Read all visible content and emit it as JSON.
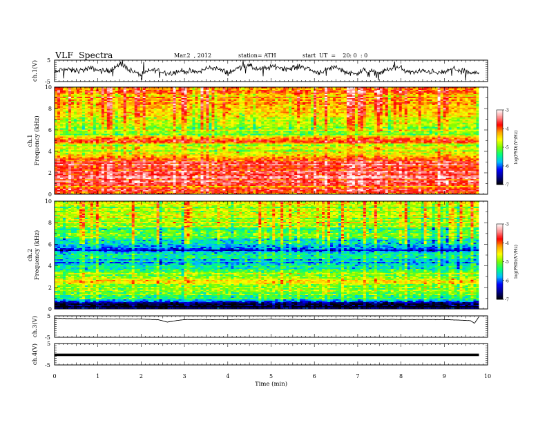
{
  "header": {
    "title": "VLF  Spectra",
    "date": "Mar.2  , 2012",
    "station": "station= ATH",
    "start": "start  UT  =    20: 0  : 0"
  },
  "axes": {
    "xlabel": "Time  (min)",
    "xticks": [
      "0",
      "1",
      "2",
      "3",
      "4",
      "5",
      "6",
      "7",
      "8",
      "9",
      "10"
    ],
    "ch1_ylabel": "ch.1(V)",
    "ch3_ylabel": "ch.3(V)",
    "ch4_ylabel": "ch.4(V)",
    "spec_ylabel_ch": [
      "ch.1",
      "ch.2"
    ],
    "spec_ylabel": "Frequency  (kHz)",
    "volt_ticks": [
      "5",
      "-5"
    ],
    "freq_ticks": [
      "0",
      "2",
      "4",
      "6",
      "8",
      "10"
    ],
    "colorbar_label": "log(PSD)(V²/Hz)",
    "colorbar_ticks": [
      "-3",
      "-4",
      "-5",
      "-6",
      "-7"
    ]
  },
  "colors": {
    "colormap": [
      "#000000",
      "#00008b",
      "#0000ff",
      "#00bfff",
      "#00ff7f",
      "#7cfc00",
      "#ffff00",
      "#ffa500",
      "#ff0000",
      "#ff9090",
      "#ffffff"
    ]
  },
  "chart_data": [
    {
      "type": "line",
      "panel": "ch.1",
      "ylabel": "ch.1(V)",
      "xlim": [
        0,
        10
      ],
      "ylim": [
        -5,
        5
      ],
      "xlabel": "Time  (min)",
      "x": [
        0,
        0.5,
        1,
        1.5,
        2,
        2.5,
        3,
        3.5,
        4,
        4.5,
        5,
        5.5,
        6,
        6.5,
        7,
        7.5,
        8,
        8.5,
        9,
        9.5,
        9.8
      ],
      "values": [
        -1,
        1,
        0,
        2,
        -1,
        0,
        -1,
        1,
        0,
        2,
        1,
        2,
        0,
        1,
        -1,
        0,
        1,
        -1,
        0,
        0,
        -1
      ]
    },
    {
      "type": "heatmap",
      "panel": "ch.1",
      "ylabel": "Frequency  (kHz)",
      "xlim": [
        0,
        10
      ],
      "ylim": [
        0,
        10
      ],
      "data_end_min": 9.8,
      "colorbar": {
        "label": "log(PSD)(V²/Hz)",
        "range": [
          -7,
          -3
        ]
      },
      "freq_kHz": [
        0.5,
        1,
        1.5,
        2,
        2.5,
        3,
        3.5,
        4,
        4.5,
        5,
        5.5,
        6,
        6.5,
        7,
        7.5,
        8,
        8.5,
        9,
        9.5,
        10
      ],
      "mean_log_psd": [
        -4.0,
        -3.7,
        -3.6,
        -3.7,
        -3.8,
        -3.7,
        -4.2,
        -4.7,
        -4.9,
        -3.8,
        -4.9,
        -5.0,
        -4.8,
        -4.6,
        -4.4,
        -4.3,
        -4.2,
        -4.2,
        -4.1,
        -4.0
      ]
    },
    {
      "type": "heatmap",
      "panel": "ch.2",
      "ylabel": "Frequency  (kHz)",
      "xlim": [
        0,
        10
      ],
      "ylim": [
        0,
        10
      ],
      "data_end_min": 9.8,
      "colorbar": {
        "label": "log(PSD)(V²/Hz)",
        "range": [
          -7,
          -3
        ]
      },
      "freq_kHz": [
        0.5,
        1,
        1.5,
        2,
        2.5,
        3,
        3.5,
        4,
        4.5,
        5,
        5.5,
        6,
        6.5,
        7,
        7.5,
        8,
        8.5,
        9,
        9.5,
        10
      ],
      "mean_log_psd": [
        -6.8,
        -5.2,
        -5.0,
        -5.1,
        -4.6,
        -5.0,
        -5.1,
        -5.7,
        -5.8,
        -5.3,
        -6.1,
        -5.7,
        -5.3,
        -5.0,
        -5.0,
        -4.9,
        -4.8,
        -4.8,
        -4.8,
        -4.8
      ]
    },
    {
      "type": "line",
      "panel": "ch.3",
      "ylabel": "ch.3(V)",
      "xlim": [
        0,
        10
      ],
      "ylim": [
        -5,
        5
      ],
      "x": [
        0,
        1,
        2,
        2.4,
        2.6,
        2.75,
        3,
        4,
        5,
        6,
        7,
        8,
        9,
        9.6,
        9.7,
        9.8
      ],
      "values": [
        3.8,
        3.6,
        3.5,
        3.2,
        2.1,
        2.6,
        3.3,
        3.3,
        3.4,
        3.3,
        3.4,
        3.3,
        3.3,
        2.8,
        1.6,
        4.6
      ]
    },
    {
      "type": "line",
      "panel": "ch.4",
      "ylabel": "ch.4(V)",
      "xlim": [
        0,
        10
      ],
      "ylim": [
        -5,
        5
      ],
      "x": [
        0,
        9.8
      ],
      "values": [
        -0.3,
        -0.3
      ]
    }
  ]
}
